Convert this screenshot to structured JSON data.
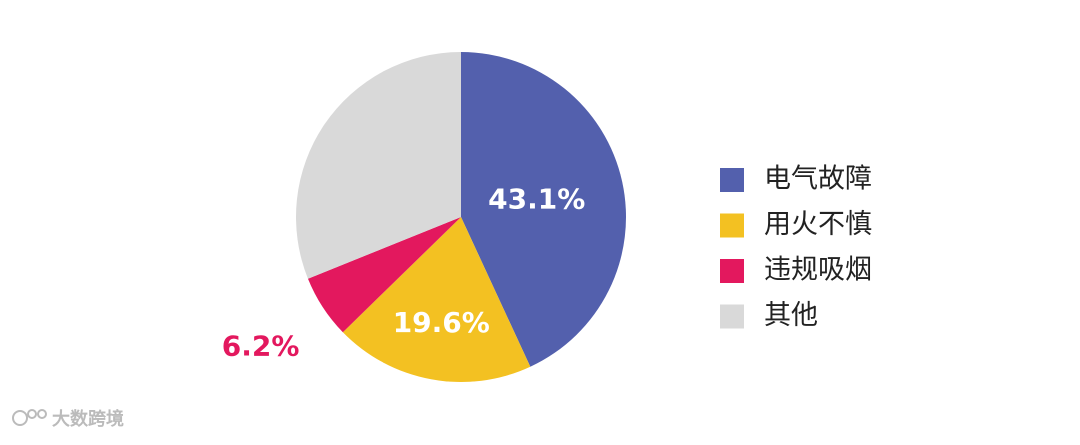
{
  "chart_data": {
    "type": "pie",
    "categories": [
      "电气故障",
      "用火不慎",
      "违规吸烟",
      "其他"
    ],
    "values": [
      43.1,
      19.6,
      6.2,
      31.1
    ],
    "value_labels": [
      "43.1%",
      "19.6%",
      "6.2%",
      null
    ],
    "colors": [
      "#5360ad",
      "#f3c122",
      "#e3185e",
      "#d9d9d9"
    ],
    "legend": "right"
  },
  "watermark": "大数跨境"
}
